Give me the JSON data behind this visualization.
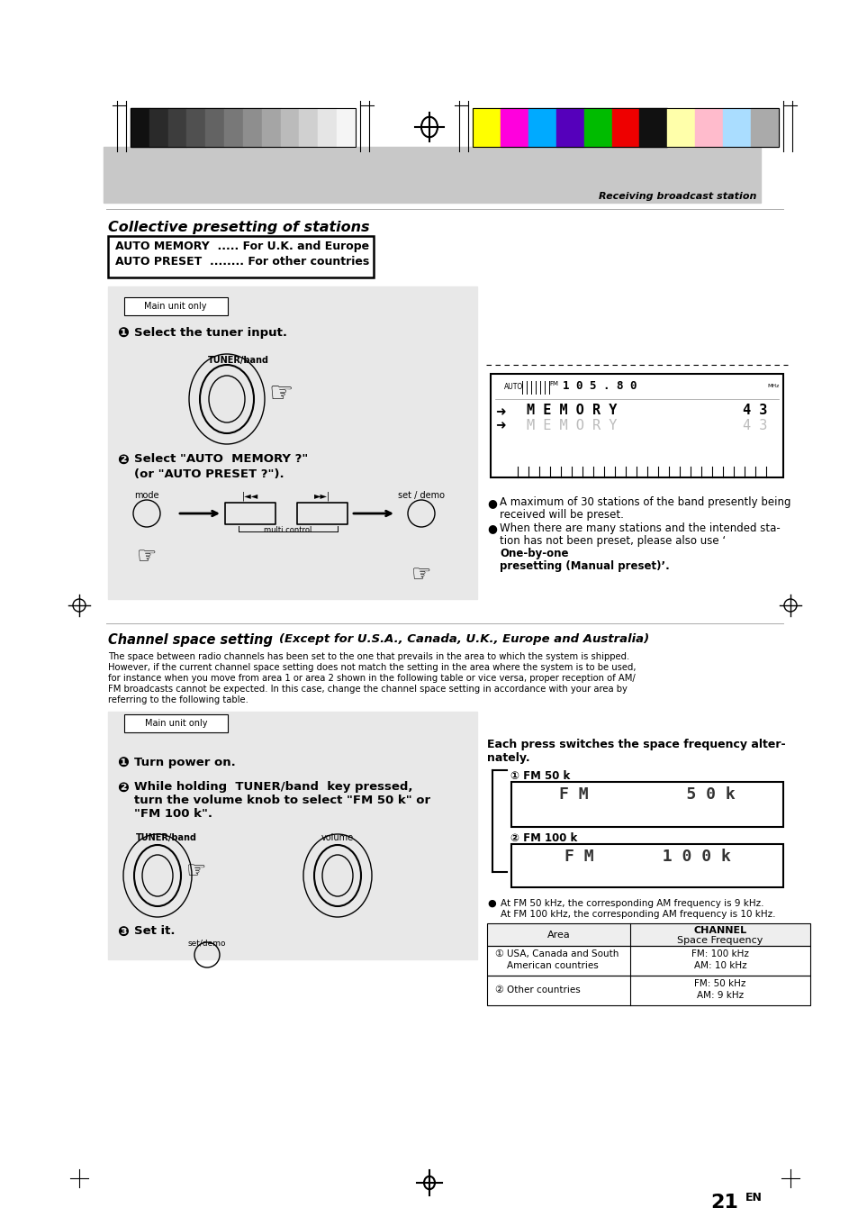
{
  "page_bg": "#ffffff",
  "gray_banner_color": "#c8c8c8",
  "instr_box_color": "#e8e8e8",
  "title1": "Collective presetting of stations",
  "box1_line1": "AUTO MEMORY  ..... For U.K. and Europe",
  "box1_line2": "AUTO PRESET  ........ For other countries",
  "main_unit_only": "Main unit only",
  "step1_num": "❶",
  "step1_text": "Select the tuner input.",
  "tuner_band_label": "TUNER/band",
  "step2_num": "❷",
  "step2_text1": "Select \"AUTO  MEMORY ?\"",
  "step2_text2": "(or \"AUTO PRESET ?\").",
  "mode_label": "mode",
  "back_label": "|◄◄",
  "fwd_label": "►►|",
  "setdemo_label": "set / demo",
  "multicontrol_label": "multi control",
  "bullet1_line1": "A maximum of 30 stations of the band presently being",
  "bullet1_line2": "received will be preset.",
  "bullet2_line1": "When there are many stations and the intended sta-",
  "bullet2_line2": "tion has not been preset, please also use ‘",
  "bullet2_bold": "One-by-one",
  "bullet2_line3": "presetting (Manual preset)’.",
  "title2_main": "Channel space setting",
  "title2_sub": "(Except for U.S.A., Canada, U.K., Europe and Australia)",
  "body1": "The space between radio channels has been set to the one that prevails in the area to which the system is shipped.",
  "body2": "However, if the current channel space setting does not match the setting in the area where the system is to be used,",
  "body3": "for instance when you move from area 1 or area 2 shown in the following table or vice versa, proper reception of AM/",
  "body4": "FM broadcasts cannot be expected. In this case, change the channel space setting in accordance with your area by",
  "body5": "referring to the following table.",
  "step1b_num": "❶",
  "step1b_text": "Turn power on.",
  "step2b_num": "❷",
  "step2b_text1": "While holding  TUNER/band  key pressed,",
  "step2b_text2": "turn the volume knob to select \"FM 50 k\" or",
  "step2b_text3": "\"FM 100 k\".",
  "tuner_band_label2": "TUNER/band",
  "volume_label": "volume",
  "step3b_num": "❸",
  "step3b_text": "Set it.",
  "setdemo_label2": "set/demo",
  "each_press1": "Each press switches the space frequency alter-",
  "each_press2": "nately.",
  "fm50k_num": "①",
  "fm50k_label": "FM 50 k",
  "fm100k_num": "②",
  "fm100k_label": "FM 100 k",
  "bullet3_line1": "At FM 50 kHz, the corresponding AM frequency is 9 kHz.",
  "bullet3_line2": "At FM 100 kHz, the corresponding AM frequency is 10 kHz.",
  "tbl_hdr1": "Area",
  "tbl_hdr2": "CHANNEL",
  "tbl_hdr3": "Space Frequency",
  "tbl_r1_num": "①",
  "tbl_r1_area1": "USA, Canada and South",
  "tbl_r1_area2": "American countries",
  "tbl_r1_ch1": "FM: 100 kHz",
  "tbl_r1_ch2": "AM: 10 kHz",
  "tbl_r2_num": "②",
  "tbl_r2_area": "Other countries",
  "tbl_r2_ch1": "FM: 50 kHz",
  "tbl_r2_ch2": "AM: 9 kHz",
  "page_num": "21",
  "page_en": "EN",
  "receiving_text": "Receiving broadcast station",
  "grays": [
    "#111111",
    "#2a2a2a",
    "#3d3d3d",
    "#505050",
    "#636363",
    "#787878",
    "#8e8e8e",
    "#a5a5a5",
    "#bbbbbb",
    "#d0d0d0",
    "#e5e5e5",
    "#f5f5f5"
  ],
  "colors": [
    "#ffff00",
    "#ff00dd",
    "#00aaff",
    "#5500bb",
    "#00bb00",
    "#ee0000",
    "#111111",
    "#ffffaa",
    "#ffbbcc",
    "#aaddff",
    "#aaaaaa"
  ]
}
